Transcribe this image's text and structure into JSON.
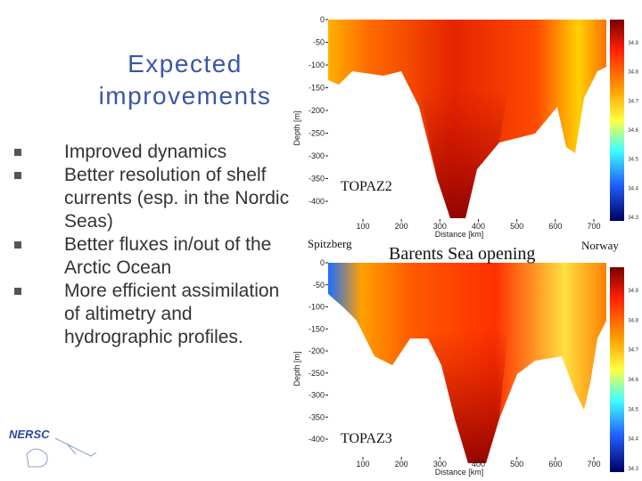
{
  "title": "Expected improvements",
  "bullets": [
    "Improved dynamics",
    "Better resolution of shelf currents (esp. in the Nordic Seas)",
    "Better fluxes in/out of the Arctic Ocean",
    "More efficient assimilation of altimetry and hydrographic profiles."
  ],
  "plots": [
    {
      "label": "TOPAZ2",
      "y_label": "Depth [m]",
      "x_label": "Distance [km]",
      "yticks": [
        0,
        -50,
        -100,
        -150,
        -200,
        -250,
        -300,
        -350,
        -400
      ],
      "xticks": [
        100,
        200,
        300,
        400,
        500,
        600,
        700
      ],
      "colorbar_labels": [
        34.9,
        34.8,
        34.7,
        34.6,
        34.5,
        34.4,
        34.3
      ]
    },
    {
      "label": "TOPAZ3",
      "y_label": "Depth [m]",
      "x_label": "Distance [km]",
      "yticks": [
        0,
        -50,
        -100,
        -150,
        -200,
        -250,
        -300,
        -350,
        -400
      ],
      "xticks": [
        100,
        200,
        300,
        400,
        500,
        600,
        700
      ],
      "colorbar_labels": [
        34.9,
        34.8,
        34.7,
        34.6,
        34.5,
        34.4,
        34.3
      ]
    }
  ],
  "section_labels": {
    "left": "Spitzberg",
    "center": "Barents Sea opening",
    "right": "Norway"
  },
  "logo": "NERSC"
}
